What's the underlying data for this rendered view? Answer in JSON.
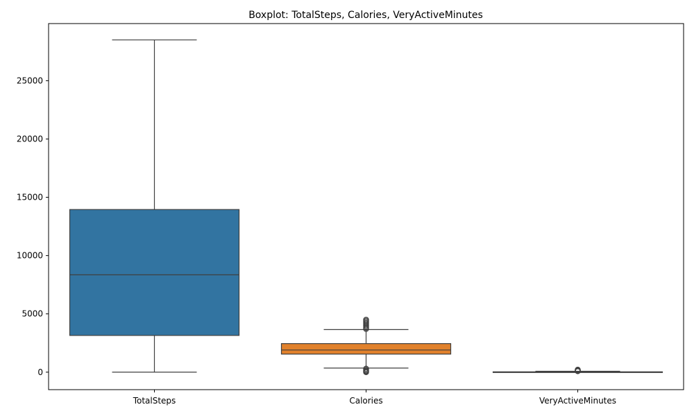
{
  "chart_data": {
    "type": "box",
    "title": "Boxplot: TotalSteps, Calories, VeryActiveMinutes",
    "xlabel": "",
    "ylabel": "",
    "ylim": [
      -1500,
      29900
    ],
    "yticks": [
      0,
      5000,
      10000,
      15000,
      20000,
      25000
    ],
    "ytick_labels": [
      "0",
      "5000",
      "10000",
      "15000",
      "20000",
      "25000"
    ],
    "grid": false,
    "legend": "none",
    "categories": [
      "TotalSteps",
      "Calories",
      "VeryActiveMinutes"
    ],
    "boxes": [
      {
        "category": "TotalSteps",
        "color": "#3274a1",
        "whisker_low": 0,
        "q1": 3150,
        "median": 8350,
        "q3": 13950,
        "whisker_high": 28500,
        "outliers": []
      },
      {
        "category": "Calories",
        "color": "#e1812c",
        "whisker_low": 350,
        "q1": 1550,
        "median": 1900,
        "q3": 2450,
        "whisker_high": 3650,
        "outliers": [
          0,
          50,
          120,
          200,
          300,
          3700,
          3800,
          3900,
          4000,
          4100,
          4200,
          4300,
          4400,
          4500
        ]
      },
      {
        "category": "VeryActiveMinutes",
        "color": "#3a923a",
        "whisker_low": 0,
        "q1": 0,
        "median": 0,
        "q3": 30,
        "whisker_high": 75,
        "outliers": [
          80,
          100,
          120,
          150,
          180,
          200,
          210
        ]
      }
    ]
  }
}
